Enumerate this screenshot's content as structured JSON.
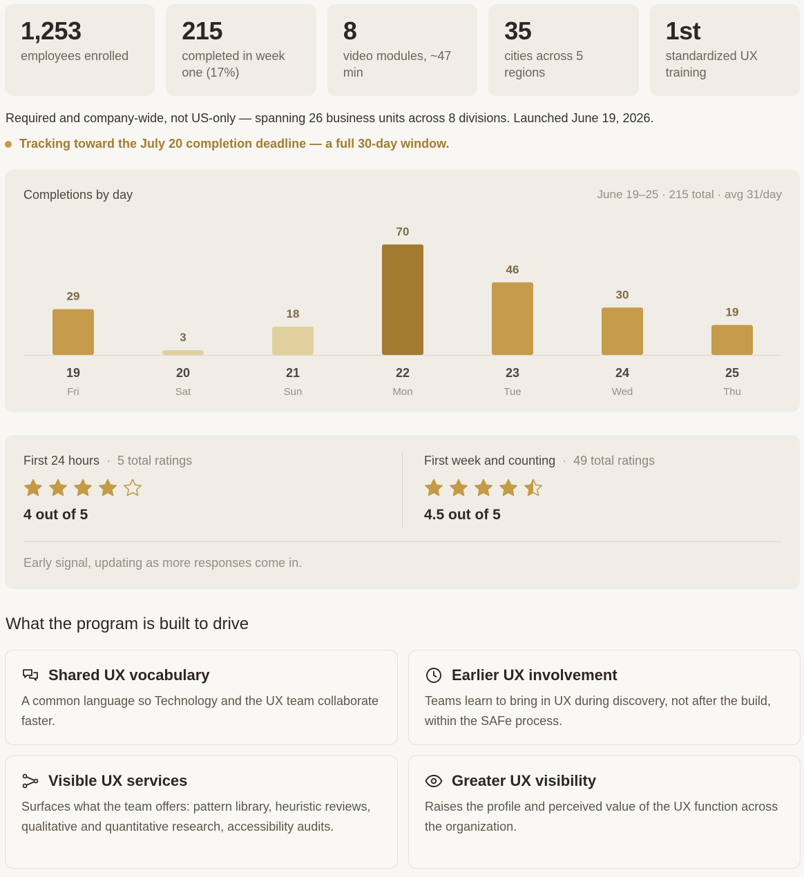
{
  "stats": [
    {
      "value": "1,253",
      "label": "employees enrolled"
    },
    {
      "value": "215",
      "label": "completed in week one (17%)"
    },
    {
      "value": "8",
      "label": "video modules, ~47 min"
    },
    {
      "value": "35",
      "label": "cities across 5 regions"
    },
    {
      "value": "1st",
      "label": "standardized UX training"
    }
  ],
  "summary": "Required and company-wide, not US-only — spanning 26 business units across 8 divisions. Launched June 19, 2026.",
  "tracking": "Tracking toward the July 20 completion deadline — a full 30-day window.",
  "chart": {
    "title": "Completions by day",
    "meta": "June 19–25 · 215 total · avg 31/day"
  },
  "chart_data": {
    "type": "bar",
    "title": "Completions by day",
    "categories": [
      "19",
      "20",
      "21",
      "22",
      "23",
      "24",
      "25"
    ],
    "days": [
      "Fri",
      "Sat",
      "Sun",
      "Mon",
      "Tue",
      "Wed",
      "Thu"
    ],
    "values": [
      29,
      3,
      18,
      70,
      46,
      30,
      19
    ],
    "ylim": [
      0,
      70
    ],
    "grid": false,
    "colors": {
      "default": "#c49c4b",
      "weekend": "#e0d0a0",
      "peak": "#a37b31",
      "label": "#7b6a45",
      "axis": "#dcd6cb"
    },
    "bar_color_keys": [
      "default",
      "weekend",
      "weekend",
      "peak",
      "default",
      "default",
      "default"
    ]
  },
  "ratings": {
    "left": {
      "period": "First 24 hours",
      "count": "5 total ratings",
      "stars": 4,
      "score": "4 out of 5"
    },
    "right": {
      "period": "First week and counting",
      "count": "49 total ratings",
      "stars": 4.5,
      "score": "4.5 out of 5"
    },
    "note": "Early signal, updating as more responses come in.",
    "star_color": "#c39a46"
  },
  "drivers": {
    "title": "What the program is built to drive",
    "items": [
      {
        "icon": "chat-bubbles-icon",
        "title": "Shared UX vocabulary",
        "body": "A common language so Technology and the UX team collaborate faster."
      },
      {
        "icon": "clock-icon",
        "title": "Earlier UX involvement",
        "body": "Teams learn to bring in UX during discovery, not after the build, within the SAFe process."
      },
      {
        "icon": "route-icon",
        "title": "Visible UX services",
        "body": "Surfaces what the team offers: pattern library, heuristic reviews, qualitative and quantitative research, accessibility audits."
      },
      {
        "icon": "eye-icon",
        "title": "Greater UX visibility",
        "body": "Raises the profile and perceived value of the UX function across the organization."
      }
    ]
  }
}
